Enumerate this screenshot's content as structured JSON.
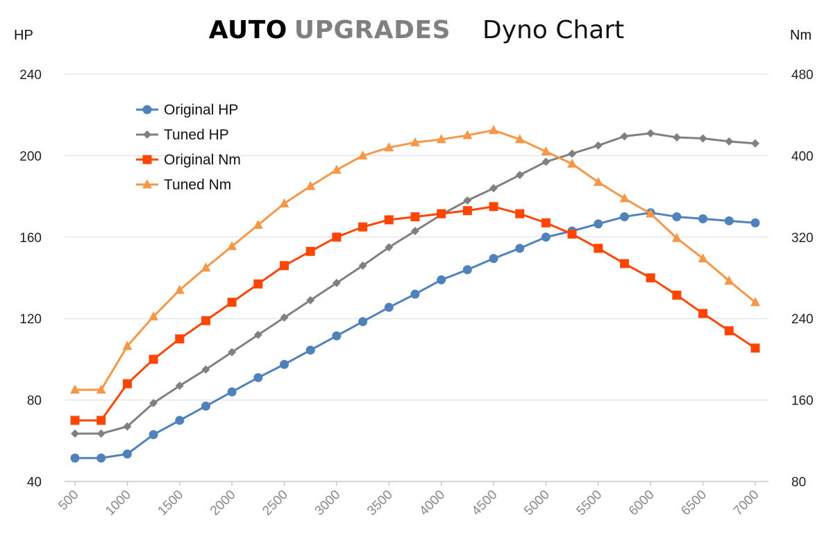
{
  "header": {
    "brand_primary": "AUTO",
    "brand_secondary": "UPGRADES",
    "subtitle": "Dyno Chart",
    "brand_primary_color": "#000000",
    "brand_secondary_color": "#808080"
  },
  "chart_data": {
    "type": "line",
    "title": "Dyno Chart",
    "legend_position": "top-left",
    "grid": true,
    "x": [
      500,
      750,
      1000,
      1250,
      1500,
      1750,
      2000,
      2250,
      2500,
      2750,
      3000,
      3250,
      3500,
      3750,
      4000,
      4250,
      4500,
      4750,
      5000,
      5250,
      5500,
      5750,
      6000,
      6250,
      6500,
      6750,
      7000
    ],
    "x_ticks": [
      "500",
      "1000",
      "1500",
      "2000",
      "2500",
      "3000",
      "3500",
      "4000",
      "4500",
      "5000",
      "5500",
      "6000",
      "6500",
      "7000"
    ],
    "y_left": {
      "label": "HP",
      "range": [
        40,
        240
      ],
      "ticks": [
        "40",
        "80",
        "120",
        "160",
        "200",
        "240"
      ]
    },
    "y_right": {
      "label": "Nm",
      "range": [
        80,
        480
      ],
      "ticks": [
        "80",
        "160",
        "240",
        "320",
        "400",
        "480"
      ]
    },
    "series": [
      {
        "name": "Original HP",
        "axis": "left",
        "color": "#4f81bd",
        "marker": "circle",
        "values": [
          51.5,
          51.5,
          53.5,
          63,
          70,
          77,
          84,
          91,
          97.5,
          104.5,
          111.5,
          118.5,
          125.5,
          132,
          139,
          144,
          149.5,
          154.5,
          160,
          163,
          166.5,
          170,
          172,
          170,
          169,
          168,
          167
        ]
      },
      {
        "name": "Tuned HP",
        "axis": "left",
        "color": "#808080",
        "marker": "diamond",
        "values": [
          63.5,
          63.5,
          67,
          78.5,
          87,
          95,
          103.5,
          112,
          120.5,
          129,
          137.5,
          146,
          155,
          163,
          171,
          178,
          184,
          190.5,
          197,
          201,
          205,
          209.5,
          211,
          209,
          208.5,
          207,
          206
        ]
      },
      {
        "name": "Original Nm",
        "axis": "right",
        "color": "#ff4500",
        "marker": "square",
        "values": [
          140,
          140,
          176,
          200,
          220,
          238,
          256,
          274,
          292,
          306,
          320,
          330,
          337,
          340,
          343,
          346,
          350,
          343,
          334,
          323,
          309,
          294,
          280,
          263,
          245,
          228,
          211
        ]
      },
      {
        "name": "Tuned Nm",
        "axis": "right",
        "color": "#f79646",
        "marker": "triangle",
        "values": [
          170,
          170,
          213,
          242,
          268,
          290,
          311,
          332,
          353,
          370,
          386,
          400,
          408,
          413,
          416,
          420,
          425,
          416,
          404,
          392,
          374,
          358,
          343,
          319,
          299,
          277,
          256
        ]
      }
    ]
  }
}
